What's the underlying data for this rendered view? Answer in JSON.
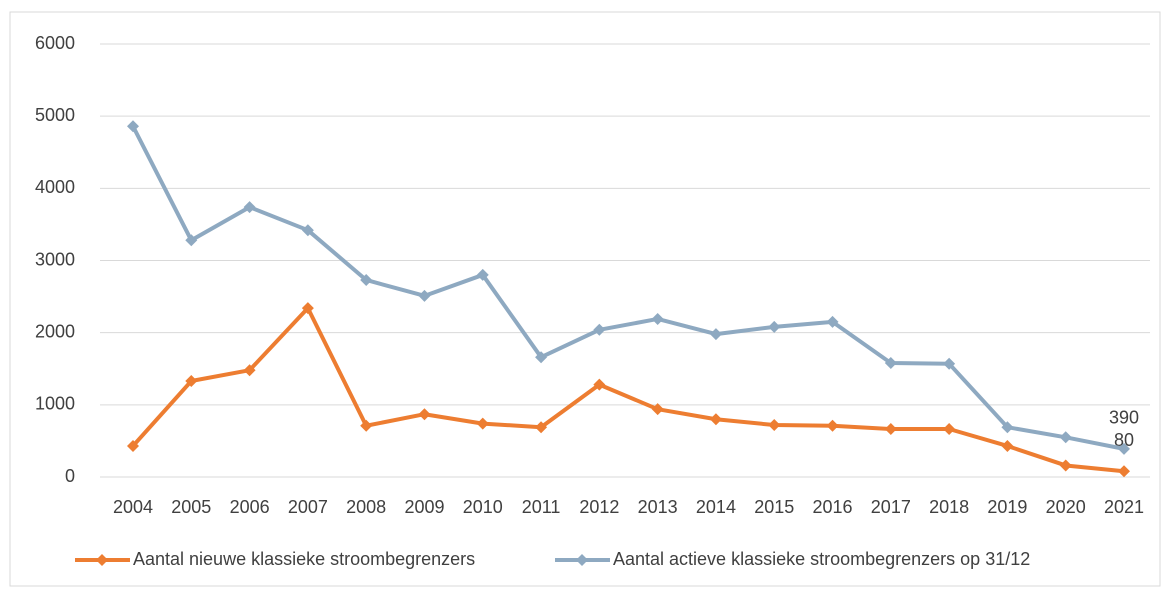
{
  "chart_data": {
    "type": "line",
    "categories": [
      "2004",
      "2005",
      "2006",
      "2007",
      "2008",
      "2009",
      "2010",
      "2011",
      "2012",
      "2013",
      "2014",
      "2015",
      "2016",
      "2017",
      "2018",
      "2019",
      "2020",
      "2021"
    ],
    "series": [
      {
        "name": "Aantal nieuwe klassieke stroombegrenzers",
        "color": "#ed7d31",
        "values": [
          430,
          1330,
          1480,
          2340,
          710,
          870,
          740,
          690,
          1280,
          940,
          800,
          720,
          710,
          665,
          665,
          430,
          160,
          80
        ],
        "value_labels": [
          null,
          null,
          null,
          null,
          null,
          null,
          null,
          null,
          null,
          null,
          null,
          null,
          null,
          null,
          null,
          null,
          null,
          "80"
        ]
      },
      {
        "name": "Aantal actieve klassieke stroombegrenzers op 31/12",
        "color": "#8ea9c1",
        "values": [
          4860,
          3280,
          3740,
          3420,
          2730,
          2510,
          2800,
          1660,
          2040,
          2190,
          1980,
          2080,
          2150,
          1580,
          1570,
          690,
          550,
          390
        ],
        "value_labels": [
          null,
          null,
          null,
          null,
          null,
          null,
          null,
          null,
          null,
          null,
          null,
          null,
          null,
          null,
          null,
          null,
          null,
          "390"
        ]
      }
    ],
    "ylim": [
      0,
      6000
    ],
    "yticks": [
      0,
      1000,
      2000,
      3000,
      4000,
      5000,
      6000
    ],
    "grid": true,
    "legend": "bottom"
  }
}
